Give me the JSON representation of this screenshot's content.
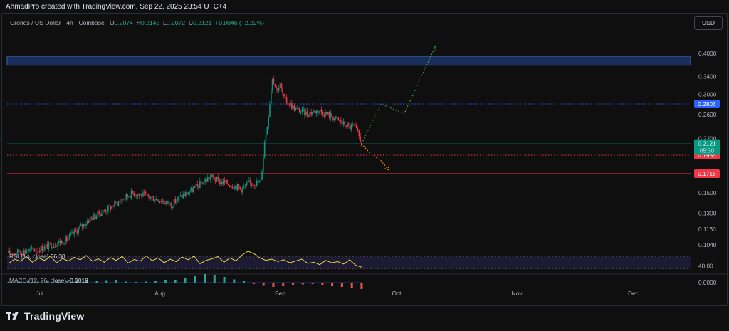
{
  "header": {
    "credit": "AhmadPro created with TradingView.com, Sep 22, 2025 23:54 UTC+4"
  },
  "symbol": {
    "name": "Cronos / US Dollar · 4h · Coinbase",
    "open_label": "O",
    "open": "0.2074",
    "high_label": "H",
    "high": "0.2143",
    "low_label": "L",
    "low": "0.2072",
    "close_label": "C",
    "close": "0.2121",
    "change": "+0.0046 (+2.22%)"
  },
  "currency_button": "USD",
  "brand": {
    "name": "TradingView"
  },
  "chart_data": {
    "type": "candlestick",
    "title": "Cronos / US Dollar · 4h · Coinbase",
    "y_scale": "log",
    "price_axis_labels": [
      "0.4000",
      "0.3400",
      "0.3000",
      "0.2600",
      "0.2200",
      "0.1500",
      "0.1300",
      "0.1160",
      "0.1040"
    ],
    "x_labels": [
      "Jul",
      "Aug",
      "Sep",
      "Oct",
      "Nov",
      "Dec"
    ],
    "price_path": [
      {
        "date": "2025-06-23",
        "price": 0.098
      },
      {
        "date": "2025-07-01",
        "price": 0.101
      },
      {
        "date": "2025-07-08",
        "price": 0.108
      },
      {
        "date": "2025-07-14",
        "price": 0.125
      },
      {
        "date": "2025-07-19",
        "price": 0.135
      },
      {
        "date": "2025-07-25",
        "price": 0.15
      },
      {
        "date": "2025-07-28",
        "price": 0.147
      },
      {
        "date": "2025-08-01",
        "price": 0.143
      },
      {
        "date": "2025-08-04",
        "price": 0.138
      },
      {
        "date": "2025-08-06",
        "price": 0.145
      },
      {
        "date": "2025-08-09",
        "price": 0.152
      },
      {
        "date": "2025-08-14",
        "price": 0.168
      },
      {
        "date": "2025-08-16",
        "price": 0.163
      },
      {
        "date": "2025-08-20",
        "price": 0.158
      },
      {
        "date": "2025-08-22",
        "price": 0.154
      },
      {
        "date": "2025-08-24",
        "price": 0.16
      },
      {
        "date": "2025-08-27",
        "price": 0.162
      },
      {
        "date": "2025-08-28",
        "price": 0.215
      },
      {
        "date": "2025-08-29",
        "price": 0.26
      },
      {
        "date": "2025-08-30",
        "price": 0.34
      },
      {
        "date": "2025-08-31",
        "price": 0.31
      },
      {
        "date": "2025-09-01",
        "price": 0.32
      },
      {
        "date": "2025-09-02",
        "price": 0.29
      },
      {
        "date": "2025-09-05",
        "price": 0.27
      },
      {
        "date": "2025-09-08",
        "price": 0.262
      },
      {
        "date": "2025-09-11",
        "price": 0.268
      },
      {
        "date": "2025-09-14",
        "price": 0.258
      },
      {
        "date": "2025-09-17",
        "price": 0.245
      },
      {
        "date": "2025-09-19",
        "price": 0.238
      },
      {
        "date": "2025-09-20",
        "price": 0.24
      },
      {
        "date": "2025-09-21",
        "price": 0.228
      },
      {
        "date": "2025-09-22",
        "price": 0.2121
      }
    ],
    "resistance_zone": {
      "from": 0.368,
      "to": 0.392,
      "color": "#1a2e5c"
    },
    "levels": [
      {
        "price": 0.2803,
        "label": "0.2803",
        "color": "#2962ff",
        "style": "dotted"
      },
      {
        "price": 0.1955,
        "label": "0.1955",
        "color": "#f23645",
        "style": "dotted"
      },
      {
        "price": 0.1716,
        "label": "0.1716",
        "color": "#f23645",
        "style": "solid"
      }
    ],
    "last_price": {
      "label": "0.2121",
      "countdown": "05:30",
      "color": "#089981"
    },
    "projections": [
      {
        "color": "#4caf50",
        "points": [
          {
            "date": "2025-09-22",
            "price": 0.2121
          },
          {
            "date": "2025-09-27",
            "price": 0.28
          },
          {
            "date": "2025-10-03",
            "price": 0.262
          },
          {
            "date": "2025-10-11",
            "price": 0.42
          }
        ]
      },
      {
        "color": "#ff9800",
        "points": [
          {
            "date": "2025-09-22",
            "price": 0.2121
          },
          {
            "date": "2025-09-24",
            "price": 0.199
          },
          {
            "date": "2025-09-27",
            "price": 0.188
          },
          {
            "date": "2025-09-29",
            "price": 0.176
          }
        ]
      }
    ],
    "rsi": {
      "label": "RSI (14, close)",
      "value": "36.30",
      "axis_label": "40.00",
      "band_upper": 70,
      "band_lower": 30,
      "line_color": "#ffeb3b",
      "values": [
        48,
        62,
        55,
        70,
        52,
        66,
        58,
        72,
        50,
        64,
        56,
        68,
        60,
        74,
        55,
        63,
        52,
        67,
        58,
        71,
        49,
        61,
        55,
        73,
        57,
        66,
        50,
        62,
        54,
        69,
        60,
        72,
        47,
        58,
        63,
        70,
        52,
        66,
        56,
        75,
        88,
        80,
        66,
        58,
        62,
        54,
        60,
        50,
        56,
        62,
        48,
        52,
        44,
        58,
        50,
        54,
        46,
        60,
        42,
        36
      ]
    },
    "macd": {
      "label": "MACD (12, 26, close)",
      "value": "-0.0018",
      "axis_label": "0.0000",
      "values": [
        0.0002,
        0.0003,
        0.0004,
        0.0003,
        0.0004,
        0.0005,
        0.0004,
        0.0005,
        0.0006,
        0.0004,
        0.0005,
        0.0006,
        0.0003,
        0.0002,
        0.0003,
        0.0004,
        0.0006,
        0.0008,
        0.0012,
        0.0018,
        0.0024,
        0.0021,
        0.0016,
        0.0009,
        0.0004,
        -0.0004,
        -0.0009,
        -0.0012,
        -0.001,
        -0.0008,
        -0.0005,
        -0.0004,
        -0.0007,
        -0.001,
        -0.0012,
        -0.0014,
        -0.0018
      ]
    }
  }
}
